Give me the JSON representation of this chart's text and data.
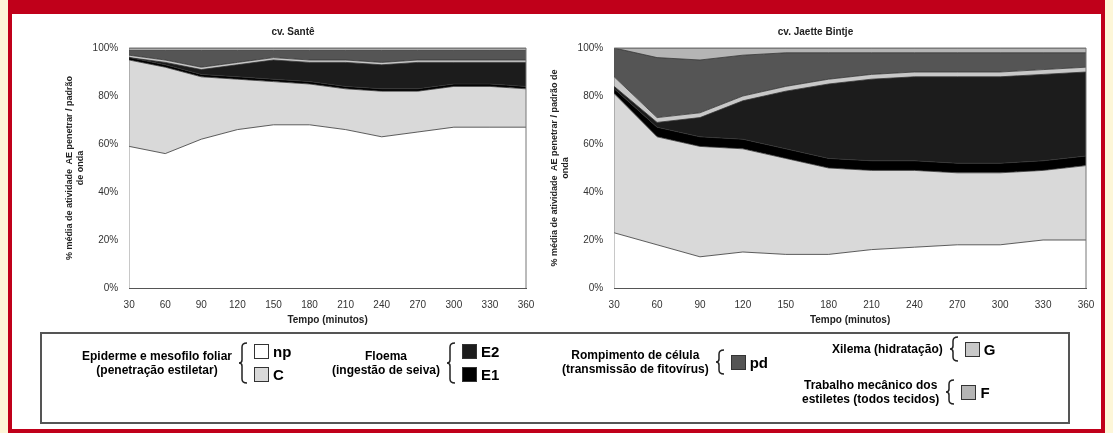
{
  "chart_data": [
    {
      "type": "area",
      "title": "cv. Santê",
      "xlabel": "Tempo (minutos)",
      "ylabel": "% média de atividade  AE penetrar / padrão\nde onda",
      "x": [
        30,
        60,
        90,
        120,
        150,
        180,
        210,
        240,
        270,
        300,
        330,
        360
      ],
      "xlim": [
        30,
        360
      ],
      "xticks": [
        30,
        60,
        90,
        120,
        150,
        180,
        210,
        240,
        270,
        300,
        330,
        360
      ],
      "ylim": [
        0,
        100
      ],
      "yticks": [
        {
          "value": 0,
          "label": "0%"
        },
        {
          "value": 20,
          "label": "20%"
        },
        {
          "value": 40,
          "label": "40%"
        },
        {
          "value": 60,
          "label": "60%"
        },
        {
          "value": 80,
          "label": "80%"
        },
        {
          "value": 100,
          "label": "100%"
        }
      ],
      "stacked": true,
      "grid": false,
      "marker": "none",
      "series": [
        {
          "color": "#ffffff",
          "values": [
            59,
            56,
            62,
            66,
            68,
            68,
            66,
            63,
            65,
            67,
            67,
            67
          ]
        },
        {
          "color": "#d9d9d9",
          "values": [
            36,
            36,
            26,
            21,
            18,
            17,
            17,
            19,
            17,
            17,
            17,
            16
          ]
        },
        {
          "color": "#000000",
          "values": [
            1,
            1,
            1,
            1,
            1,
            1,
            1,
            1,
            1,
            1,
            1,
            1
          ]
        },
        {
          "color": "#1c1c1c",
          "values": [
            0,
            1,
            2,
            5,
            8,
            8,
            10,
            10,
            11,
            9,
            9,
            10
          ]
        },
        {
          "color": "#c8c8c8",
          "values": [
            1,
            1,
            1,
            1,
            1,
            1,
            1,
            1,
            1,
            1,
            1,
            1
          ]
        },
        {
          "color": "#555555",
          "values": [
            2,
            4,
            7,
            5,
            3,
            4,
            4,
            5,
            4,
            4,
            4,
            4
          ]
        },
        {
          "color": "#b5b5b5",
          "values": [
            1,
            1,
            1,
            1,
            1,
            1,
            1,
            1,
            1,
            1,
            1,
            1
          ]
        }
      ]
    },
    {
      "type": "area",
      "title": "cv. Jaette Bintje",
      "xlabel": "Tempo (minutos)",
      "ylabel": "% média de atividade  AE penetrar / padrão de\nonda",
      "x": [
        30,
        60,
        90,
        120,
        150,
        180,
        210,
        240,
        270,
        300,
        330,
        360
      ],
      "xlim": [
        30,
        360
      ],
      "xticks": [
        30,
        60,
        90,
        120,
        150,
        180,
        210,
        240,
        270,
        300,
        330,
        360
      ],
      "ylim": [
        0,
        100
      ],
      "yticks": [
        {
          "value": 0,
          "label": "0%"
        },
        {
          "value": 20,
          "label": "20%"
        },
        {
          "value": 40,
          "label": "40%"
        },
        {
          "value": 60,
          "label": "60%"
        },
        {
          "value": 80,
          "label": "80%"
        },
        {
          "value": 100,
          "label": "100%"
        }
      ],
      "stacked": true,
      "grid": false,
      "legend": "bottom",
      "marker": "none",
      "annotations": [
        "Epiderme e mesofilo foliar\n(penetração estiletar)",
        "Floema\n(ingestão de seiva)",
        "Rompimento de célula\n(transmissão de fitovírus)",
        "Xilema (hidratação)",
        "Trabalho mecânico dos\nestiletes (todos tecidos)"
      ],
      "series": [
        {
          "name": "np",
          "color": "#ffffff",
          "values": [
            23,
            18,
            13,
            15,
            14,
            14,
            16,
            17,
            18,
            18,
            20,
            20
          ]
        },
        {
          "name": "C",
          "color": "#d9d9d9",
          "values": [
            58,
            45,
            46,
            43,
            40,
            36,
            33,
            32,
            30,
            30,
            29,
            31
          ]
        },
        {
          "name": "E1",
          "color": "#000000",
          "values": [
            2,
            4,
            4,
            4,
            4,
            4,
            4,
            4,
            4,
            4,
            4,
            4
          ]
        },
        {
          "name": "E2",
          "color": "#1c1c1c",
          "values": [
            1,
            2,
            8,
            16,
            24,
            31,
            34,
            35,
            36,
            36,
            36,
            35
          ]
        },
        {
          "name": "G",
          "color": "#c8c8c8",
          "values": [
            4,
            2,
            2,
            2,
            2,
            2,
            2,
            2,
            2,
            2,
            2,
            2
          ]
        },
        {
          "name": "pd",
          "color": "#555555",
          "values": [
            12,
            25,
            22,
            17,
            14,
            11,
            9,
            8,
            8,
            8,
            7,
            6
          ]
        },
        {
          "name": "F",
          "color": "#b5b5b5",
          "values": [
            0,
            4,
            5,
            3,
            2,
            2,
            2,
            2,
            2,
            2,
            2,
            2
          ]
        }
      ]
    }
  ]
}
